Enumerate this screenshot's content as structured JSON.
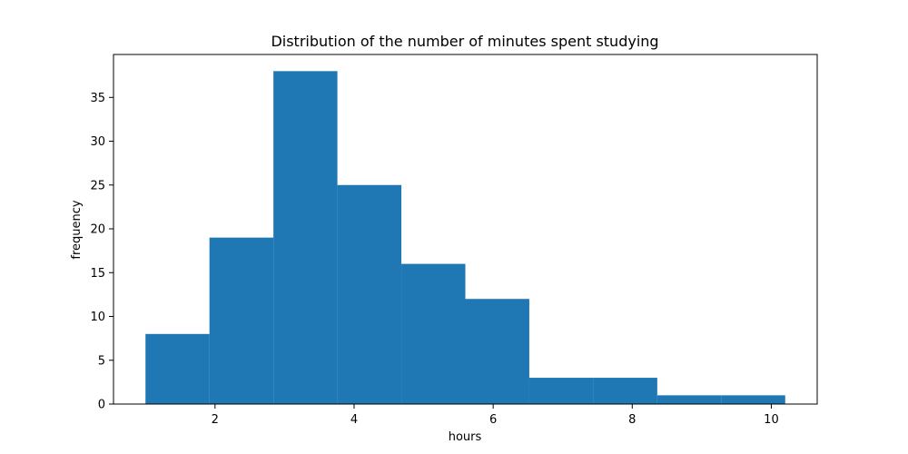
{
  "chart_data": {
    "type": "bar",
    "title": "Distribution of the number of minutes spent studying",
    "xlabel": "hours",
    "ylabel": "frequency",
    "bin_edges": [
      1.0,
      1.92,
      2.84,
      3.76,
      4.68,
      5.6,
      6.52,
      7.44,
      8.36,
      9.28,
      10.2
    ],
    "values": [
      8,
      19,
      38,
      25,
      16,
      12,
      3,
      3,
      1,
      1
    ],
    "xlim": [
      0.54,
      10.66
    ],
    "ylim": [
      0,
      39.9
    ],
    "xticks": [
      2,
      4,
      6,
      8,
      10
    ],
    "yticks": [
      0,
      5,
      10,
      15,
      20,
      25,
      30,
      35
    ],
    "grid": false,
    "bar_color": "#1f77b4"
  }
}
